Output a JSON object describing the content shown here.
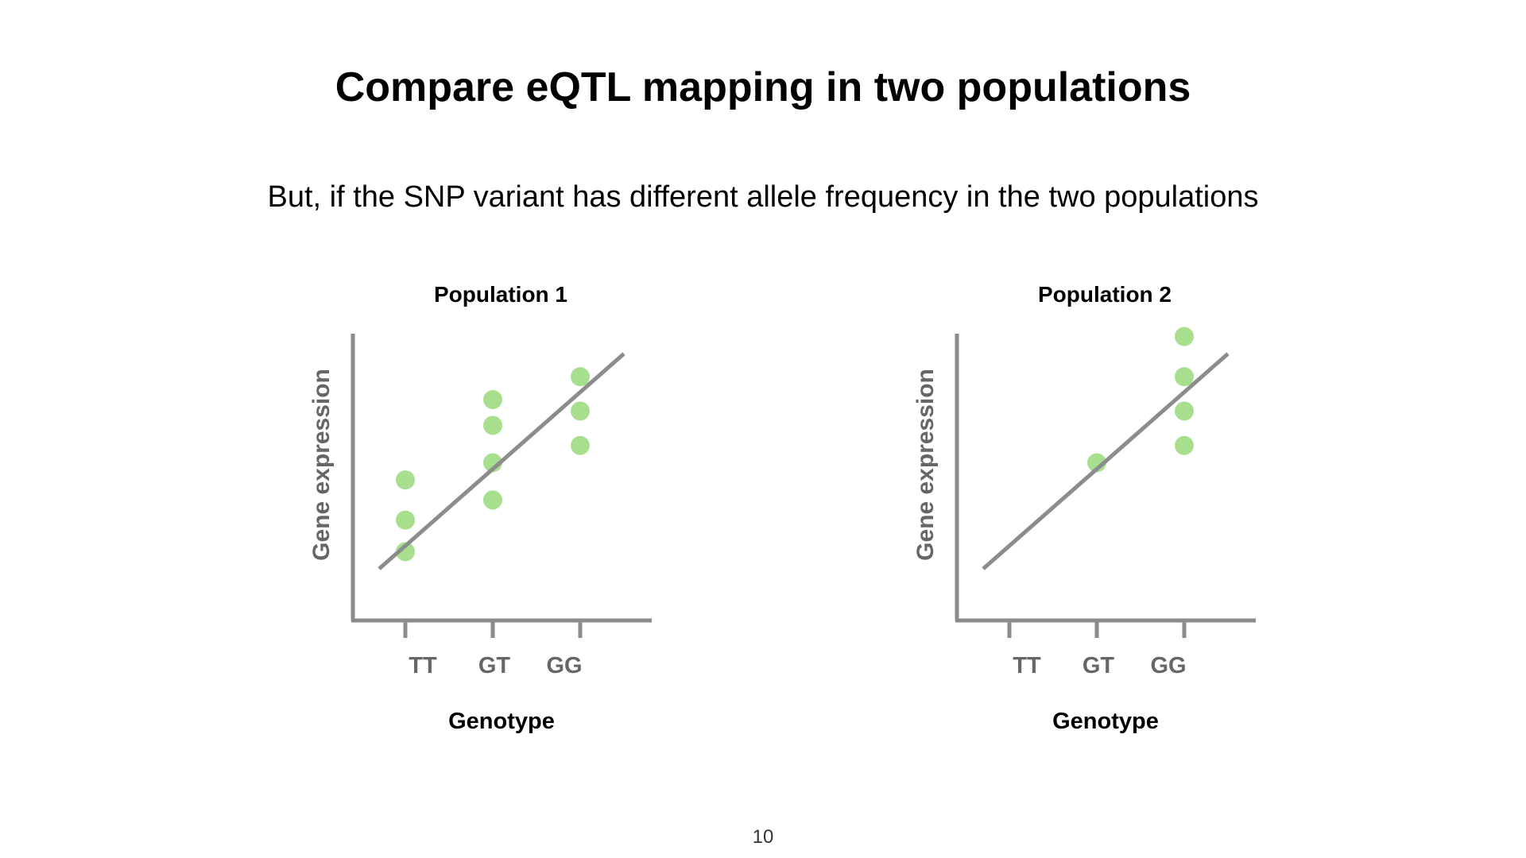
{
  "slide": {
    "title": "Compare eQTL mapping in two populations",
    "subtitle": "But, if the SNP variant has different allele frequency in the two populations",
    "page_number": "10"
  },
  "colors": {
    "point": "#a8df8e",
    "axis": "#8c8c8c",
    "tick_label": "#666666"
  },
  "chart_data": [
    {
      "type": "scatter",
      "title": "Population 1",
      "xlabel": "Genotype",
      "ylabel": "Gene expression",
      "categories": [
        "TT",
        "GT",
        "GG"
      ],
      "ylim": [
        0,
        10
      ],
      "grid": false,
      "points": [
        {
          "x": "TT",
          "y": 4.9
        },
        {
          "x": "TT",
          "y": 3.5
        },
        {
          "x": "TT",
          "y": 2.4
        },
        {
          "x": "GT",
          "y": 7.7
        },
        {
          "x": "GT",
          "y": 6.8
        },
        {
          "x": "GT",
          "y": 5.5
        },
        {
          "x": "GT",
          "y": 4.2
        },
        {
          "x": "GG",
          "y": 8.5
        },
        {
          "x": "GG",
          "y": 7.3
        },
        {
          "x": "GG",
          "y": 6.1
        }
      ],
      "fit_line": {
        "x_start": -0.3,
        "y_start": 1.8,
        "x_end": 2.5,
        "y_end": 9.3
      }
    },
    {
      "type": "scatter",
      "title": "Population 2",
      "xlabel": "Genotype",
      "ylabel": "Gene expression",
      "categories": [
        "TT",
        "GT",
        "GG"
      ],
      "ylim": [
        0,
        10
      ],
      "grid": false,
      "points": [
        {
          "x": "GT",
          "y": 5.5
        },
        {
          "x": "GG",
          "y": 9.9
        },
        {
          "x": "GG",
          "y": 8.5
        },
        {
          "x": "GG",
          "y": 7.3
        },
        {
          "x": "GG",
          "y": 6.1
        }
      ],
      "fit_line": {
        "x_start": -0.3,
        "y_start": 1.8,
        "x_end": 2.5,
        "y_end": 9.3
      }
    }
  ]
}
